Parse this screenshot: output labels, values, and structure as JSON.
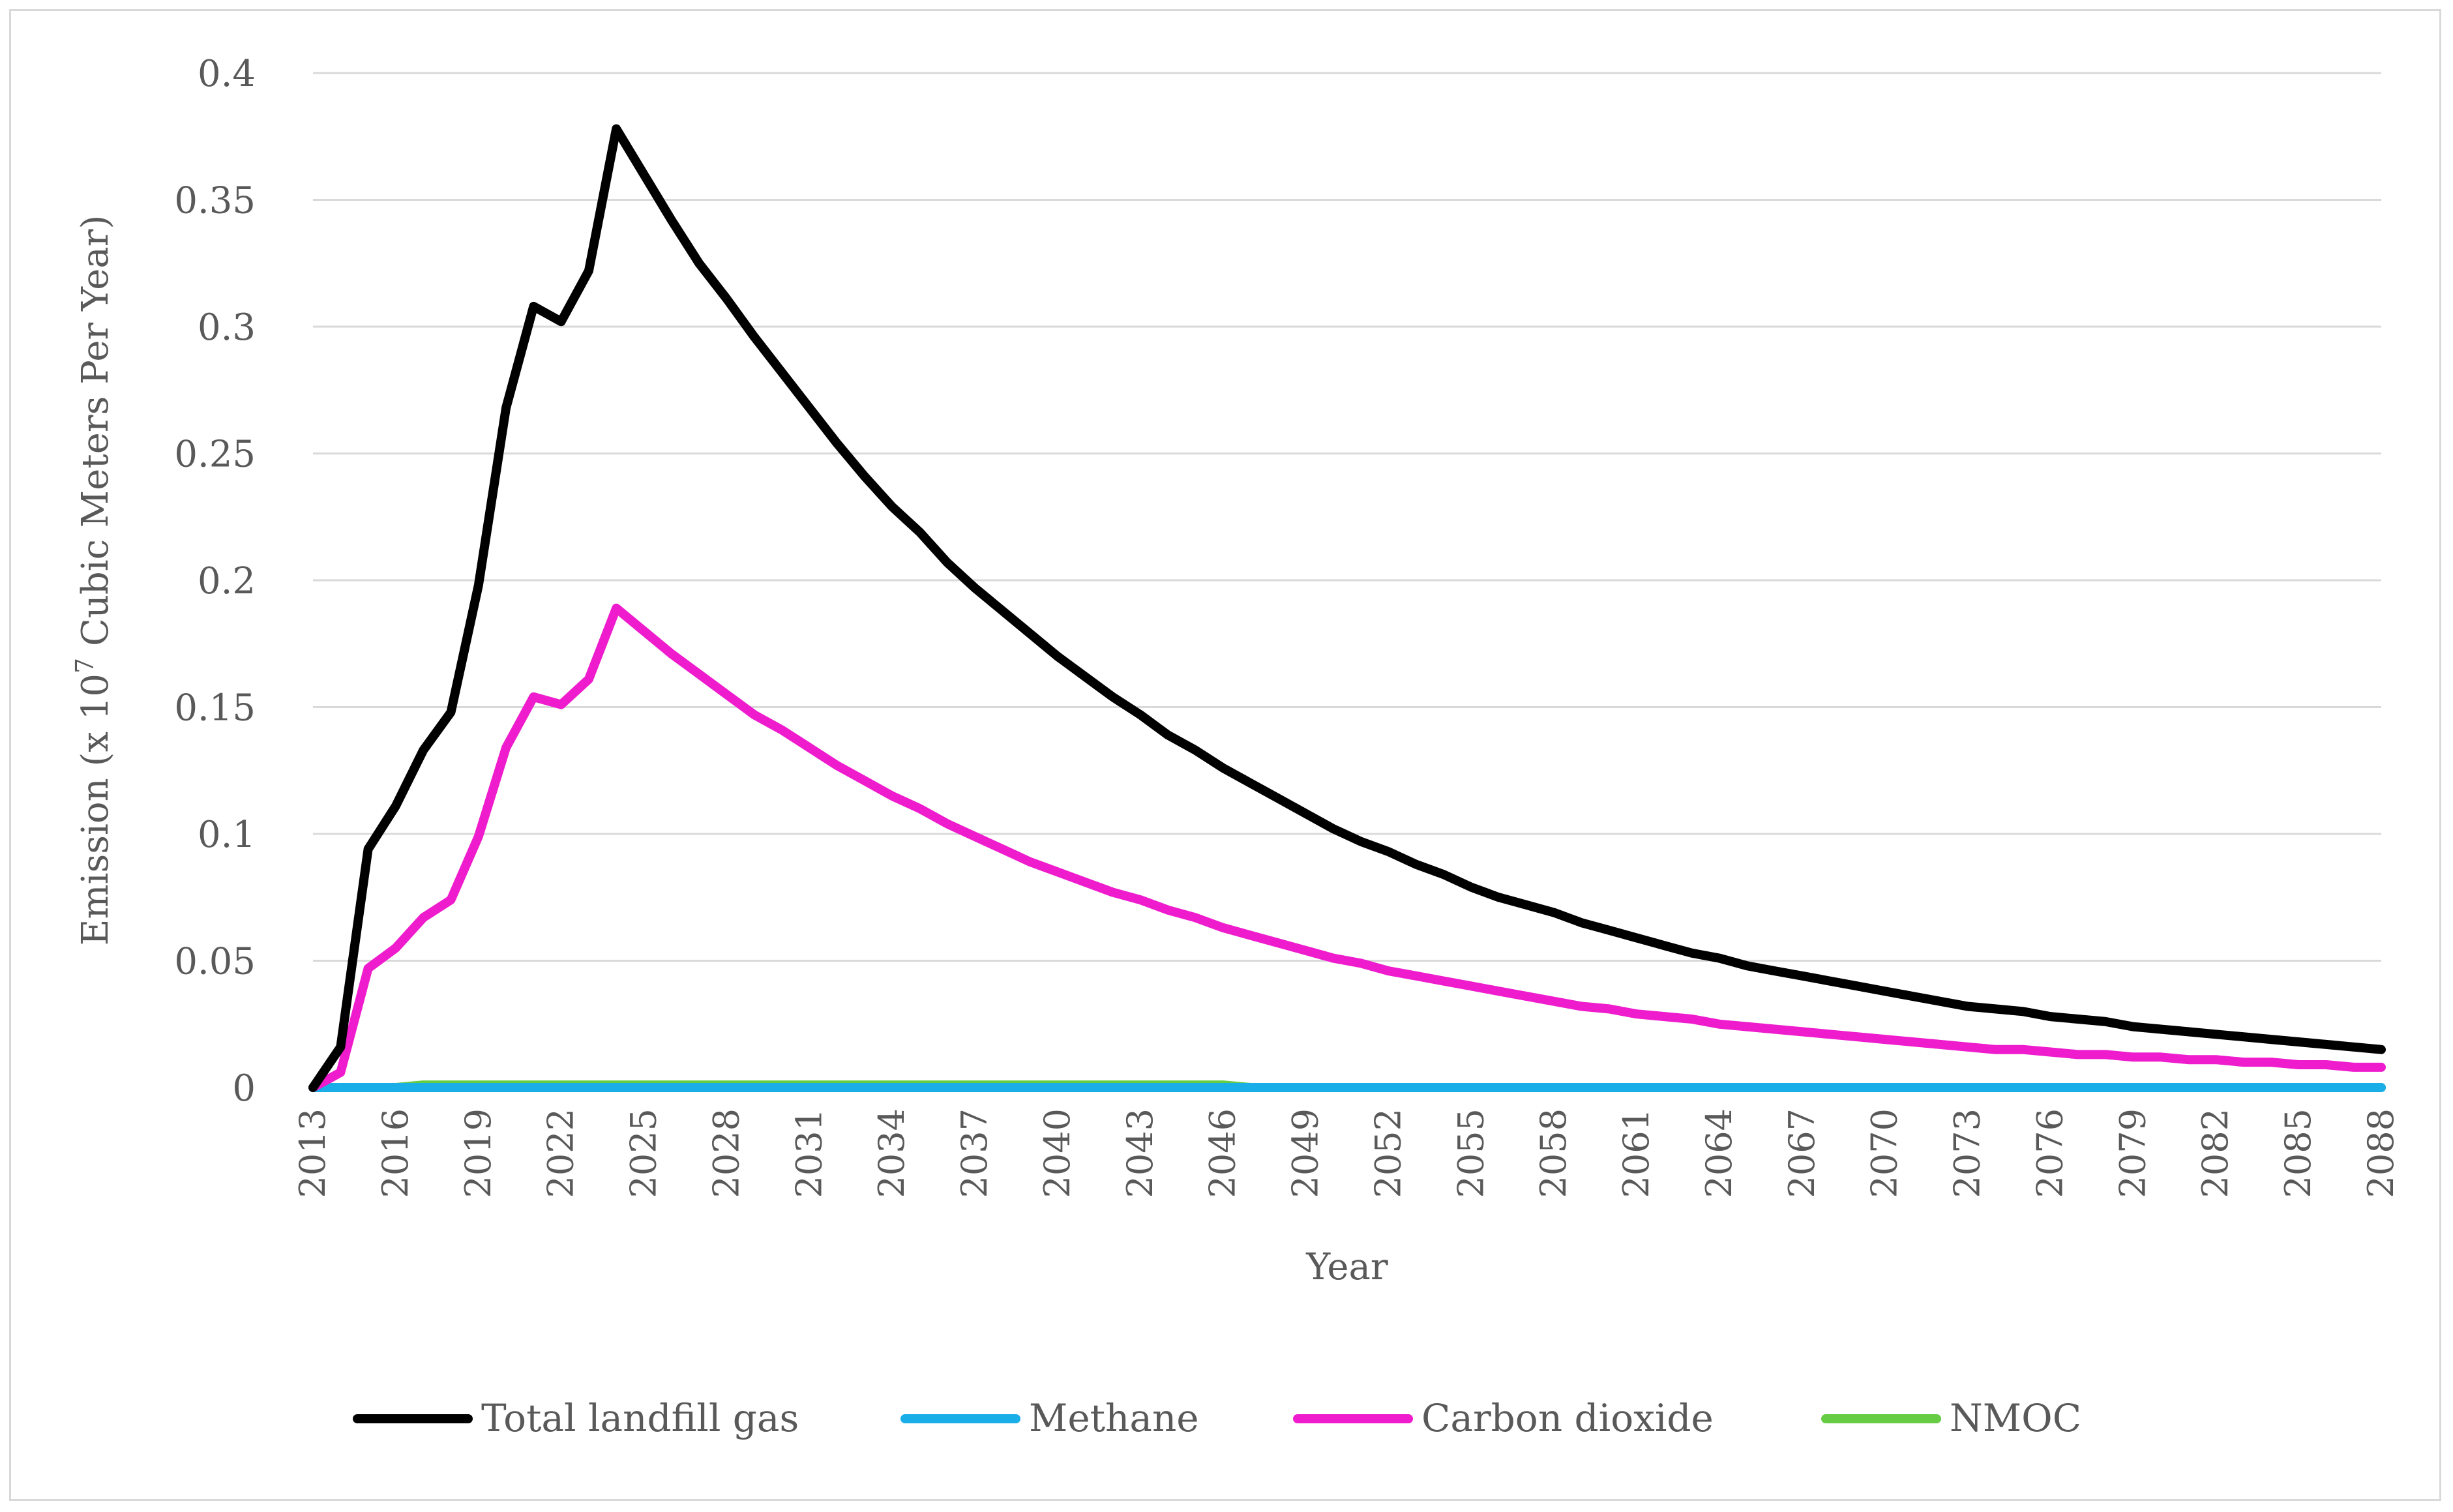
{
  "chart_data": {
    "type": "line",
    "title": "",
    "xlabel": "Year",
    "ylabel_prefix": "Emission (x 10",
    "ylabel_sup": "7",
    "ylabel_suffix": " Cubic Meters Per Year)",
    "ylim": [
      0,
      0.4
    ],
    "yticks": [
      0,
      0.05,
      0.1,
      0.15,
      0.2,
      0.25,
      0.3,
      0.35,
      0.4
    ],
    "ytick_labels": [
      "0",
      "0.05",
      "0.1",
      "0.15",
      "0.2",
      "0.25",
      "0.3",
      "0.35",
      "0.4"
    ],
    "x_start": 2013,
    "x_end": 2088,
    "xtick_step": 3,
    "grid": true,
    "legend_position": "bottom",
    "series": [
      {
        "name": "Total landfill gas",
        "color": "#000000",
        "values": [
          0.0,
          0.016,
          0.094,
          0.111,
          0.133,
          0.148,
          0.198,
          0.268,
          0.308,
          0.302,
          0.322,
          0.378,
          0.36,
          0.342,
          0.325,
          0.311,
          0.296,
          0.282,
          0.268,
          0.254,
          0.241,
          0.229,
          0.219,
          0.207,
          0.197,
          0.188,
          0.179,
          0.17,
          0.162,
          0.154,
          0.147,
          0.139,
          0.133,
          0.126,
          0.12,
          0.114,
          0.108,
          0.102,
          0.097,
          0.093,
          0.088,
          0.084,
          0.079,
          0.075,
          0.072,
          0.069,
          0.065,
          0.062,
          0.059,
          0.056,
          0.053,
          0.051,
          0.048,
          0.046,
          0.044,
          0.042,
          0.04,
          0.038,
          0.036,
          0.034,
          0.032,
          0.031,
          0.03,
          0.028,
          0.027,
          0.026,
          0.024,
          0.023,
          0.022,
          0.021,
          0.02,
          0.019,
          0.018,
          0.017,
          0.016,
          0.015
        ]
      },
      {
        "name": "Methane",
        "color": "#1aaee9",
        "values": [
          0.0,
          0.0,
          0.0,
          0.0,
          0.0,
          0.0,
          0.0,
          0.0,
          0.0,
          0.0,
          0.0,
          0.0,
          0.0,
          0.0,
          0.0,
          0.0,
          0.0,
          0.0,
          0.0,
          0.0,
          0.0,
          0.0,
          0.0,
          0.0,
          0.0,
          0.0,
          0.0,
          0.0,
          0.0,
          0.0,
          0.0,
          0.0,
          0.0,
          0.0,
          0.0,
          0.0,
          0.0,
          0.0,
          0.0,
          0.0,
          0.0,
          0.0,
          0.0,
          0.0,
          0.0,
          0.0,
          0.0,
          0.0,
          0.0,
          0.0,
          0.0,
          0.0,
          0.0,
          0.0,
          0.0,
          0.0,
          0.0,
          0.0,
          0.0,
          0.0,
          0.0,
          0.0,
          0.0,
          0.0,
          0.0,
          0.0,
          0.0,
          0.0,
          0.0,
          0.0,
          0.0,
          0.0,
          0.0,
          0.0,
          0.0,
          0.0
        ]
      },
      {
        "name": "Carbon dioxide",
        "color": "#ee1ccd",
        "values": [
          0.0,
          0.006,
          0.047,
          0.055,
          0.067,
          0.074,
          0.099,
          0.134,
          0.154,
          0.151,
          0.161,
          0.189,
          0.18,
          0.171,
          0.163,
          0.155,
          0.147,
          0.141,
          0.134,
          0.127,
          0.121,
          0.115,
          0.11,
          0.104,
          0.099,
          0.094,
          0.089,
          0.085,
          0.081,
          0.077,
          0.074,
          0.07,
          0.067,
          0.063,
          0.06,
          0.057,
          0.054,
          0.051,
          0.049,
          0.046,
          0.044,
          0.042,
          0.04,
          0.038,
          0.036,
          0.034,
          0.032,
          0.031,
          0.029,
          0.028,
          0.027,
          0.025,
          0.024,
          0.023,
          0.022,
          0.021,
          0.02,
          0.019,
          0.018,
          0.017,
          0.016,
          0.015,
          0.015,
          0.014,
          0.013,
          0.013,
          0.012,
          0.012,
          0.011,
          0.011,
          0.01,
          0.01,
          0.009,
          0.009,
          0.008,
          0.008
        ]
      },
      {
        "name": "NMOC",
        "color": "#66cc44",
        "values": [
          0.0,
          0.0,
          0.0,
          0.0,
          0.001,
          0.001,
          0.001,
          0.001,
          0.001,
          0.001,
          0.001,
          0.001,
          0.001,
          0.001,
          0.001,
          0.001,
          0.001,
          0.001,
          0.001,
          0.001,
          0.001,
          0.001,
          0.001,
          0.001,
          0.001,
          0.001,
          0.001,
          0.001,
          0.001,
          0.001,
          0.001,
          0.001,
          0.001,
          0.001,
          0.0,
          0.0,
          0.0,
          0.0,
          0.0,
          0.0,
          0.0,
          0.0,
          0.0,
          0.0,
          0.0,
          0.0,
          0.0,
          0.0,
          0.0,
          0.0,
          0.0,
          0.0,
          0.0,
          0.0,
          0.0,
          0.0,
          0.0,
          0.0,
          0.0,
          0.0,
          0.0,
          0.0,
          0.0,
          0.0,
          0.0,
          0.0,
          0.0,
          0.0,
          0.0,
          0.0,
          0.0,
          0.0,
          0.0,
          0.0,
          0.0,
          0.0
        ]
      }
    ]
  }
}
